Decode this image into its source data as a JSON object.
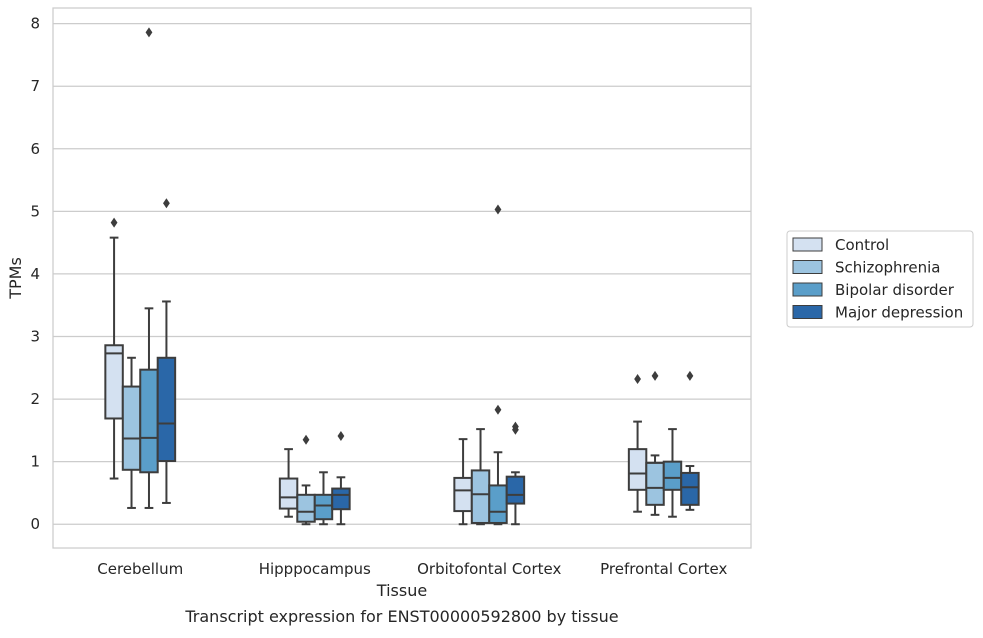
{
  "caption": "Transcript expression for ENST00000592800 by tissue",
  "chart_data": {
    "type": "box",
    "title": "",
    "xlabel": "Tissue",
    "ylabel": "TPMs",
    "ylim": [
      -0.38,
      8.25
    ],
    "yticks": [
      0,
      1,
      2,
      3,
      4,
      5,
      6,
      7,
      8
    ],
    "grid": "horizontal",
    "legend_position": "right",
    "categories": [
      "Cerebellum",
      "Hipppocampus",
      "Orbitofontal Cortex",
      "Prefrontal Cortex"
    ],
    "series": [
      {
        "name": "Control",
        "color": "#d4e1f1",
        "boxes": [
          {
            "whisker_low": 0.73,
            "q1": 1.69,
            "median": 2.73,
            "q3": 2.86,
            "whisker_high": 4.58,
            "outliers": [
              4.82
            ]
          },
          {
            "whisker_low": 0.12,
            "q1": 0.25,
            "median": 0.43,
            "q3": 0.73,
            "whisker_high": 1.2,
            "outliers": []
          },
          {
            "whisker_low": 0.0,
            "q1": 0.21,
            "median": 0.54,
            "q3": 0.74,
            "whisker_high": 1.36,
            "outliers": []
          },
          {
            "whisker_low": 0.2,
            "q1": 0.55,
            "median": 0.81,
            "q3": 1.2,
            "whisker_high": 1.64,
            "outliers": [
              2.32
            ]
          }
        ]
      },
      {
        "name": "Schizophrenia",
        "color": "#9cc4e0",
        "boxes": [
          {
            "whisker_low": 0.26,
            "q1": 0.87,
            "median": 1.37,
            "q3": 2.2,
            "whisker_high": 2.66,
            "outliers": []
          },
          {
            "whisker_low": 0.0,
            "q1": 0.04,
            "median": 0.2,
            "q3": 0.47,
            "whisker_high": 0.62,
            "outliers": [
              1.35
            ]
          },
          {
            "whisker_low": 0.0,
            "q1": 0.02,
            "median": 0.48,
            "q3": 0.86,
            "whisker_high": 1.52,
            "outliers": []
          },
          {
            "whisker_low": 0.15,
            "q1": 0.31,
            "median": 0.58,
            "q3": 0.98,
            "whisker_high": 1.1,
            "outliers": [
              2.37
            ]
          }
        ]
      },
      {
        "name": "Bipolar disorder",
        "color": "#5a9ec9",
        "boxes": [
          {
            "whisker_low": 0.26,
            "q1": 0.83,
            "median": 1.38,
            "q3": 2.47,
            "whisker_high": 3.45,
            "outliers": [
              7.86
            ]
          },
          {
            "whisker_low": 0.0,
            "q1": 0.08,
            "median": 0.3,
            "q3": 0.47,
            "whisker_high": 0.83,
            "outliers": []
          },
          {
            "whisker_low": 0.0,
            "q1": 0.02,
            "median": 0.2,
            "q3": 0.62,
            "whisker_high": 1.15,
            "outliers": [
              1.83,
              5.03
            ]
          },
          {
            "whisker_low": 0.12,
            "q1": 0.55,
            "median": 0.74,
            "q3": 1.0,
            "whisker_high": 1.52,
            "outliers": []
          }
        ]
      },
      {
        "name": "Major depression",
        "color": "#2a67a8",
        "boxes": [
          {
            "whisker_low": 0.34,
            "q1": 1.01,
            "median": 1.61,
            "q3": 2.66,
            "whisker_high": 3.56,
            "outliers": [
              5.13
            ]
          },
          {
            "whisker_low": 0.0,
            "q1": 0.24,
            "median": 0.47,
            "q3": 0.57,
            "whisker_high": 0.75,
            "outliers": [
              1.41
            ]
          },
          {
            "whisker_low": 0.0,
            "q1": 0.33,
            "median": 0.47,
            "q3": 0.76,
            "whisker_high": 0.83,
            "outliers": [
              1.51,
              1.56
            ]
          },
          {
            "whisker_low": 0.23,
            "q1": 0.31,
            "median": 0.59,
            "q3": 0.82,
            "whisker_high": 0.93,
            "outliers": [
              2.37
            ]
          }
        ]
      }
    ]
  }
}
